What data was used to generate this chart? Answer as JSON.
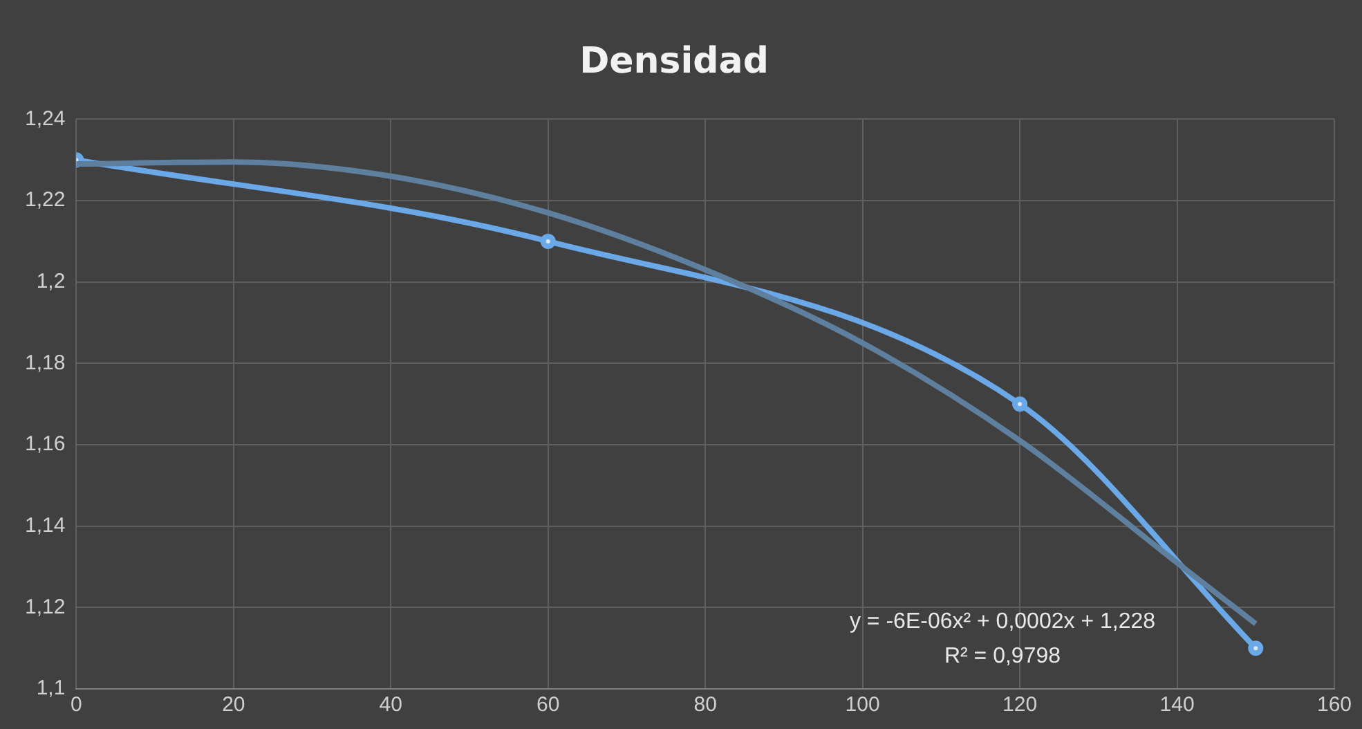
{
  "chart_data": {
    "type": "line",
    "title": "Densidad",
    "xlim": [
      0,
      160
    ],
    "xticks": [
      0,
      20,
      40,
      60,
      80,
      100,
      120,
      140,
      160
    ],
    "ylim": [
      1.1,
      1.24
    ],
    "yticks": [
      {
        "value": 1.1,
        "label": "1,1"
      },
      {
        "value": 1.12,
        "label": "1,12"
      },
      {
        "value": 1.14,
        "label": "1,14"
      },
      {
        "value": 1.16,
        "label": "1,16"
      },
      {
        "value": 1.18,
        "label": "1,18"
      },
      {
        "value": 1.2,
        "label": "1,2"
      },
      {
        "value": 1.22,
        "label": "1,22"
      },
      {
        "value": 1.24,
        "label": "1,24"
      }
    ],
    "grid": true,
    "series": [
      {
        "color": "#5f7f9f",
        "marker": "none",
        "x": [
          0,
          20,
          40,
          60,
          80,
          100,
          120,
          140,
          150
        ],
        "values": [
          1.229,
          1.2295,
          1.226,
          1.217,
          1.203,
          1.185,
          1.161,
          1.131,
          1.116
        ]
      },
      {
        "color": "#6aa8e8",
        "marker": "circle",
        "x": [
          0,
          60,
          120,
          150
        ],
        "values": [
          1.23,
          1.21,
          1.17,
          1.11
        ]
      }
    ],
    "annotations": [
      "y = -6E-06x² + 0,0002x + 1,228",
      "R² = 0,9798"
    ]
  }
}
